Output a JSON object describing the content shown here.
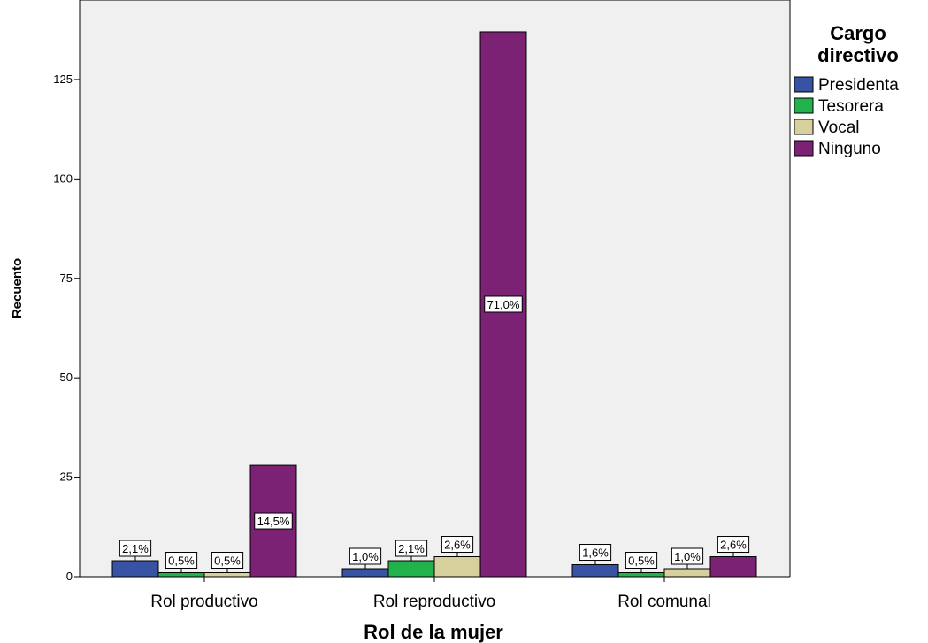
{
  "chart_data": {
    "type": "bar",
    "xlabel": "Rol de la mujer",
    "ylabel": "Recuento",
    "ylim": [
      0,
      145
    ],
    "yticks": [
      0,
      25,
      50,
      75,
      100,
      125
    ],
    "categories": [
      "Rol productivo",
      "Rol reproductivo",
      "Rol comunal"
    ],
    "legend": {
      "title_lines": [
        "Cargo",
        "directivo"
      ],
      "placement": "right"
    },
    "series": [
      {
        "name": "Presidenta",
        "color": "#3953a4",
        "values": [
          4,
          2,
          3
        ],
        "labels": [
          "2,1%",
          "1,0%",
          "1,6%"
        ]
      },
      {
        "name": "Tesorera",
        "color": "#22b24c",
        "values": [
          1,
          4,
          1
        ],
        "labels": [
          "0,5%",
          "2,1%",
          "0,5%"
        ]
      },
      {
        "name": "Vocal",
        "color": "#d6d09c",
        "values": [
          1,
          5,
          2
        ],
        "labels": [
          "0,5%",
          "2,6%",
          "1,0%"
        ]
      },
      {
        "name": "Ninguno",
        "color": "#7b2275",
        "values": [
          28,
          137,
          5
        ],
        "labels": [
          "14,5%",
          "71,0%",
          "2,6%"
        ]
      }
    ],
    "plot_background": "#f0f0f0"
  }
}
